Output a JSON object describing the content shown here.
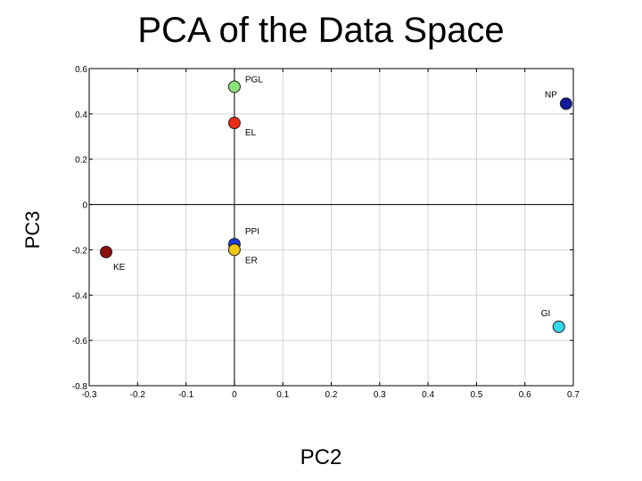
{
  "chart_data": {
    "type": "scatter",
    "title": "PCA of the Data Space",
    "xlabel": "PC2",
    "ylabel": "PC3",
    "xlim": [
      -0.3,
      0.7
    ],
    "ylim": [
      -0.8,
      0.6
    ],
    "x_ticks": [
      "-0.3",
      "-0.2",
      "-0.1",
      "0",
      "0.1",
      "0.2",
      "0.3",
      "0.4",
      "0.5",
      "0.6",
      "0.7"
    ],
    "y_ticks": [
      "0.6",
      "0.4",
      "0.2",
      "0",
      "-0.2",
      "-0.4",
      "-0.6",
      "-0.8"
    ],
    "grid": true,
    "zero_lines": true,
    "points": [
      {
        "label": "PGL",
        "x": 0.0,
        "y": 0.52,
        "color": "#8ee27a"
      },
      {
        "label": "EL",
        "x": 0.0,
        "y": 0.36,
        "color": "#ee2a12"
      },
      {
        "label": "NP",
        "x": 0.685,
        "y": 0.445,
        "color": "#12199a"
      },
      {
        "label": "PPI",
        "x": 0.0,
        "y": -0.175,
        "color": "#1b3ad8"
      },
      {
        "label": "ER",
        "x": 0.0,
        "y": -0.2,
        "color": "#f2c814"
      },
      {
        "label": "KE",
        "x": -0.265,
        "y": -0.21,
        "color": "#8b1010"
      },
      {
        "label": "GI",
        "x": 0.67,
        "y": -0.54,
        "color": "#35d6ee"
      }
    ]
  }
}
